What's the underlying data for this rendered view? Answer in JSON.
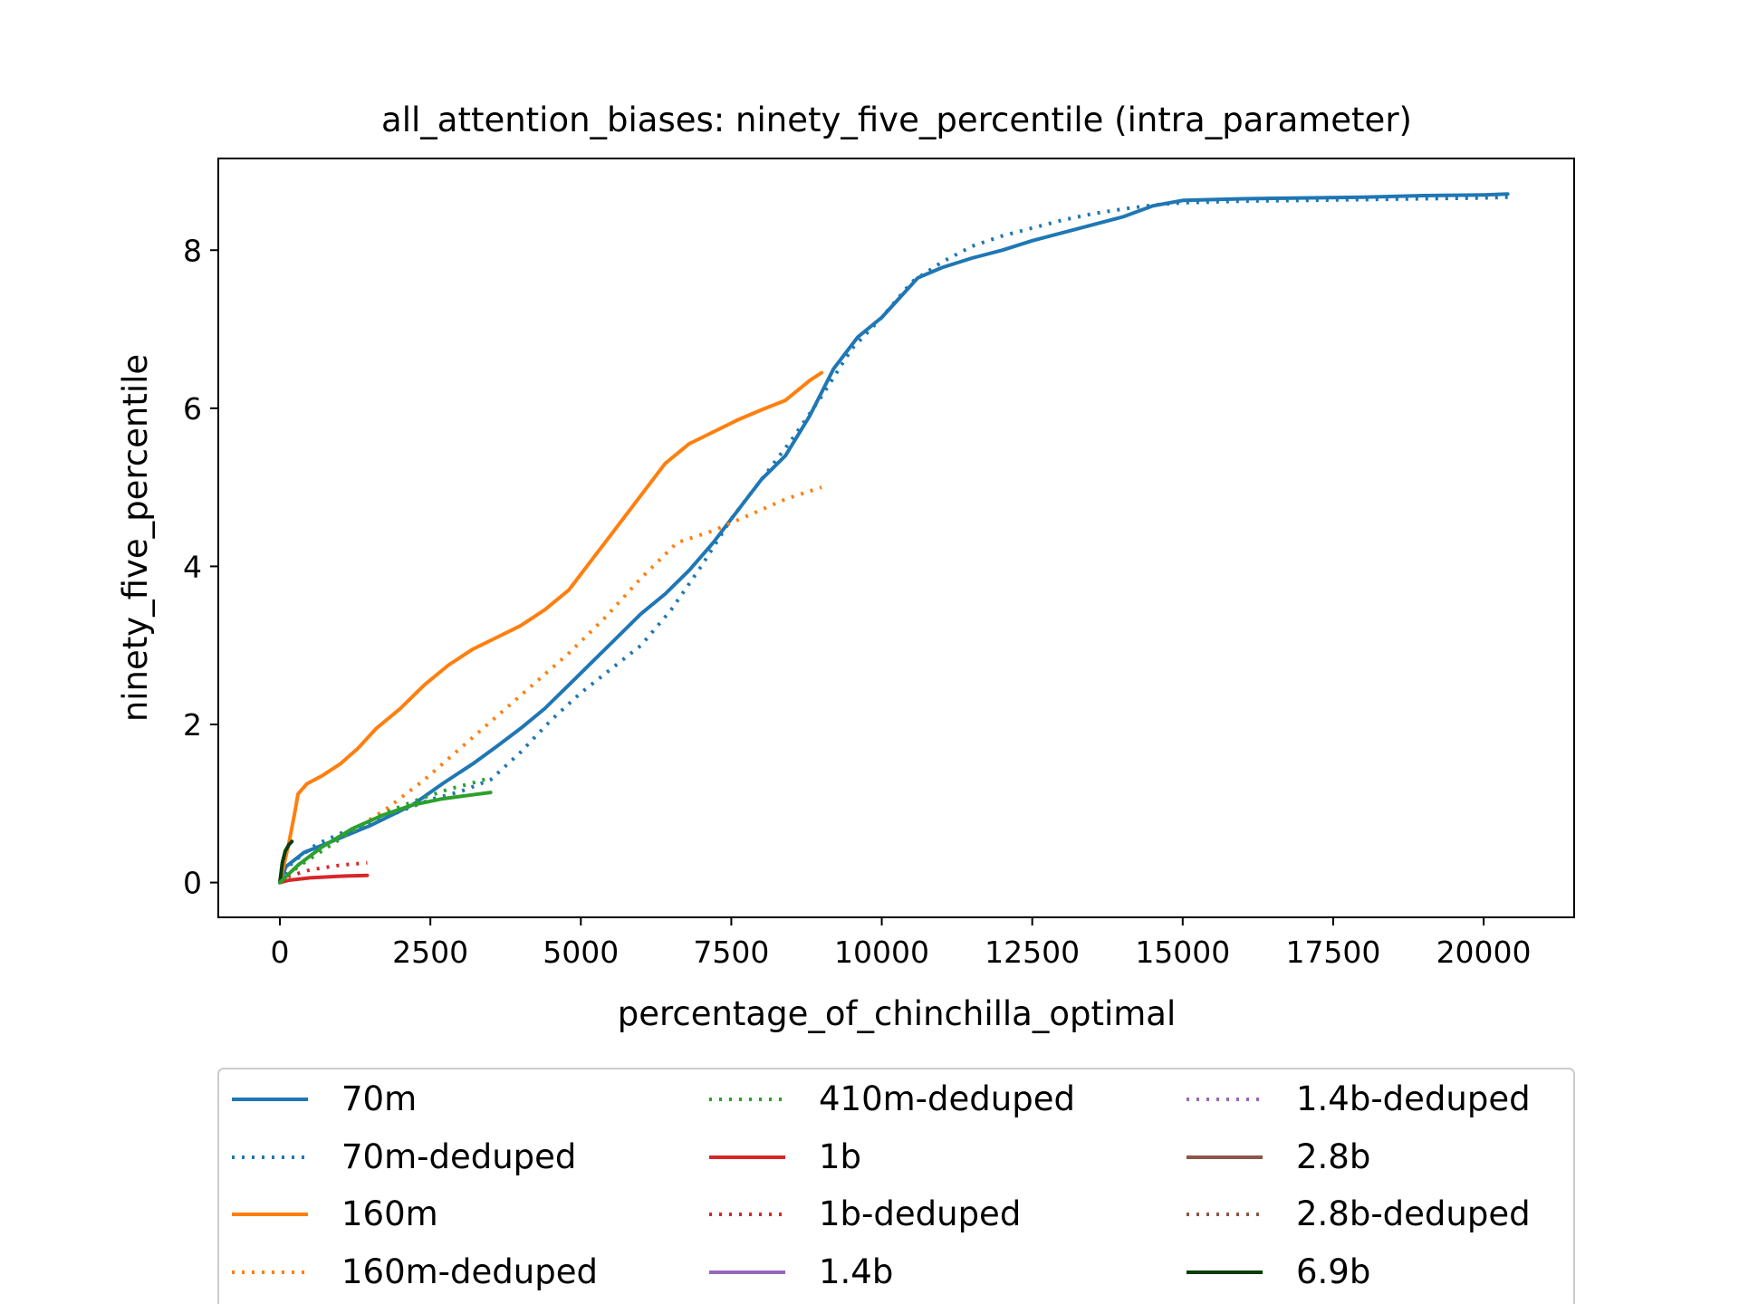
{
  "chart_data": {
    "type": "line",
    "title": "all_attention_biases: ninety_five_percentile (intra_parameter)",
    "xlabel": "percentage_of_chinchilla_optimal",
    "ylabel": "ninety_five_percentile",
    "xlim": [
      -1024,
      21504
    ],
    "ylim": [
      -0.44,
      9.16
    ],
    "xticks": [
      0,
      2500,
      5000,
      7500,
      10000,
      12500,
      15000,
      17500,
      20000
    ],
    "xtick_labels": [
      "0",
      "2500",
      "5000",
      "7500",
      "10000",
      "12500",
      "15000",
      "17500",
      "20000"
    ],
    "yticks": [
      0,
      2,
      4,
      6,
      8
    ],
    "ytick_labels": [
      "0",
      "2",
      "4",
      "6",
      "8"
    ],
    "grid": false,
    "legend_placement": "below plot, 3 columns",
    "series": [
      {
        "name": "70m",
        "color": "#1f77b4",
        "dash": "solid",
        "x": [
          0,
          100,
          400,
          800,
          1500,
          2200,
          2700,
          3200,
          3600,
          4000,
          4400,
          4800,
          5200,
          5600,
          6000,
          6400,
          6800,
          7200,
          7600,
          8000,
          8400,
          8800,
          9200,
          9600,
          10000,
          10300,
          10600,
          11000,
          11500,
          12000,
          12500,
          13000,
          13500,
          14000,
          14500,
          15000,
          16000,
          17000,
          18000,
          19000,
          20000,
          20400
        ],
        "y": [
          0,
          0.2,
          0.38,
          0.5,
          0.72,
          0.98,
          1.25,
          1.5,
          1.72,
          1.95,
          2.2,
          2.5,
          2.8,
          3.1,
          3.4,
          3.65,
          3.95,
          4.3,
          4.7,
          5.1,
          5.4,
          5.9,
          6.5,
          6.9,
          7.15,
          7.4,
          7.65,
          7.78,
          7.9,
          8.0,
          8.12,
          8.22,
          8.32,
          8.42,
          8.56,
          8.63,
          8.65,
          8.66,
          8.67,
          8.69,
          8.7,
          8.71
        ]
      },
      {
        "name": "70m-deduped",
        "color": "#1f77b4",
        "dash": "dotted",
        "x": [
          0,
          200,
          600,
          1000,
          1500,
          2000,
          2500,
          3000,
          3500,
          4000,
          4500,
          5000,
          5500,
          6000,
          6500,
          7000,
          7500,
          8000,
          8500,
          9000,
          9500,
          10000,
          10500,
          11000,
          11500,
          12000,
          12500,
          13000,
          13500,
          14000,
          14500,
          15000,
          16000,
          17000,
          18000,
          19000,
          20000,
          20400
        ],
        "y": [
          0,
          0.25,
          0.48,
          0.62,
          0.75,
          0.9,
          1.05,
          1.15,
          1.3,
          1.65,
          2.05,
          2.4,
          2.7,
          3.0,
          3.45,
          4.0,
          4.6,
          5.1,
          5.6,
          6.15,
          6.75,
          7.15,
          7.6,
          7.85,
          8.05,
          8.18,
          8.28,
          8.38,
          8.46,
          8.52,
          8.57,
          8.6,
          8.62,
          8.63,
          8.64,
          8.65,
          8.66,
          8.67
        ]
      },
      {
        "name": "160m",
        "color": "#ff7f0e",
        "dash": "solid",
        "x": [
          0,
          150,
          250,
          300,
          450,
          700,
          1000,
          1300,
          1600,
          2000,
          2400,
          2800,
          3200,
          3600,
          4000,
          4400,
          4800,
          5200,
          5600,
          6000,
          6400,
          6800,
          7200,
          7600,
          8000,
          8400,
          8800,
          9000
        ],
        "y": [
          0,
          0.5,
          0.9,
          1.12,
          1.25,
          1.35,
          1.5,
          1.7,
          1.95,
          2.2,
          2.5,
          2.75,
          2.95,
          3.1,
          3.25,
          3.45,
          3.7,
          4.1,
          4.5,
          4.9,
          5.3,
          5.55,
          5.7,
          5.85,
          5.98,
          6.1,
          6.35,
          6.45
        ]
      },
      {
        "name": "160m-deduped",
        "color": "#ff7f0e",
        "dash": "dotted",
        "x": [
          0,
          300,
          700,
          1200,
          1800,
          2400,
          3000,
          3600,
          4200,
          4800,
          5400,
          6000,
          6600,
          7200,
          7800,
          8400,
          9000
        ],
        "y": [
          0,
          0.2,
          0.42,
          0.65,
          0.95,
          1.3,
          1.7,
          2.1,
          2.5,
          2.9,
          3.35,
          3.85,
          4.3,
          4.45,
          4.65,
          4.85,
          5.0
        ]
      },
      {
        "name": "410m-deduped",
        "color": "#2ca02c",
        "dash": "dotted",
        "x": [
          0,
          300,
          800,
          1300,
          1800,
          2300,
          2800,
          3300,
          3500
        ],
        "y": [
          0,
          0.2,
          0.45,
          0.7,
          0.9,
          1.05,
          1.18,
          1.28,
          1.33
        ]
      },
      {
        "name": "1b",
        "color": "#d62728",
        "dash": "solid",
        "x": [
          0,
          150,
          500,
          1000,
          1450
        ],
        "y": [
          0,
          0.03,
          0.06,
          0.08,
          0.09
        ]
      },
      {
        "name": "1b-deduped",
        "color": "#d62728",
        "dash": "dotted",
        "x": [
          0,
          150,
          500,
          1000,
          1450
        ],
        "y": [
          0,
          0.08,
          0.16,
          0.22,
          0.25
        ]
      },
      {
        "name": "1.4b",
        "color": "#9467bd",
        "dash": "solid",
        "x": [],
        "y": []
      },
      {
        "name": "1.4b-deduped",
        "color": "#9467bd",
        "dash": "dotted",
        "x": [],
        "y": []
      },
      {
        "name": "2.8b",
        "color": "#8c564b",
        "dash": "solid",
        "x": [],
        "y": []
      },
      {
        "name": "2.8b-deduped",
        "color": "#8c564b",
        "dash": "dotted",
        "x": [],
        "y": []
      },
      {
        "name": "6.9b",
        "color": "#0b3d0b",
        "dash": "solid",
        "x": [
          0,
          40,
          90,
          150,
          200
        ],
        "y": [
          0,
          0.25,
          0.4,
          0.48,
          0.52
        ]
      },
      {
        "name": "410m",
        "color": "#2ca02c",
        "dash": "solid",
        "legend": false,
        "x": [
          0,
          300,
          700,
          1200,
          1700,
          2200,
          2700,
          3200,
          3500
        ],
        "y": [
          0,
          0.22,
          0.45,
          0.68,
          0.85,
          0.98,
          1.06,
          1.11,
          1.14
        ]
      }
    ],
    "legend": [
      [
        "70m",
        "70m-deduped",
        "160m",
        "160m-deduped"
      ],
      [
        "410m-deduped",
        "1b",
        "1b-deduped",
        "1.4b"
      ],
      [
        "1.4b-deduped",
        "2.8b",
        "2.8b-deduped",
        "6.9b"
      ]
    ]
  }
}
